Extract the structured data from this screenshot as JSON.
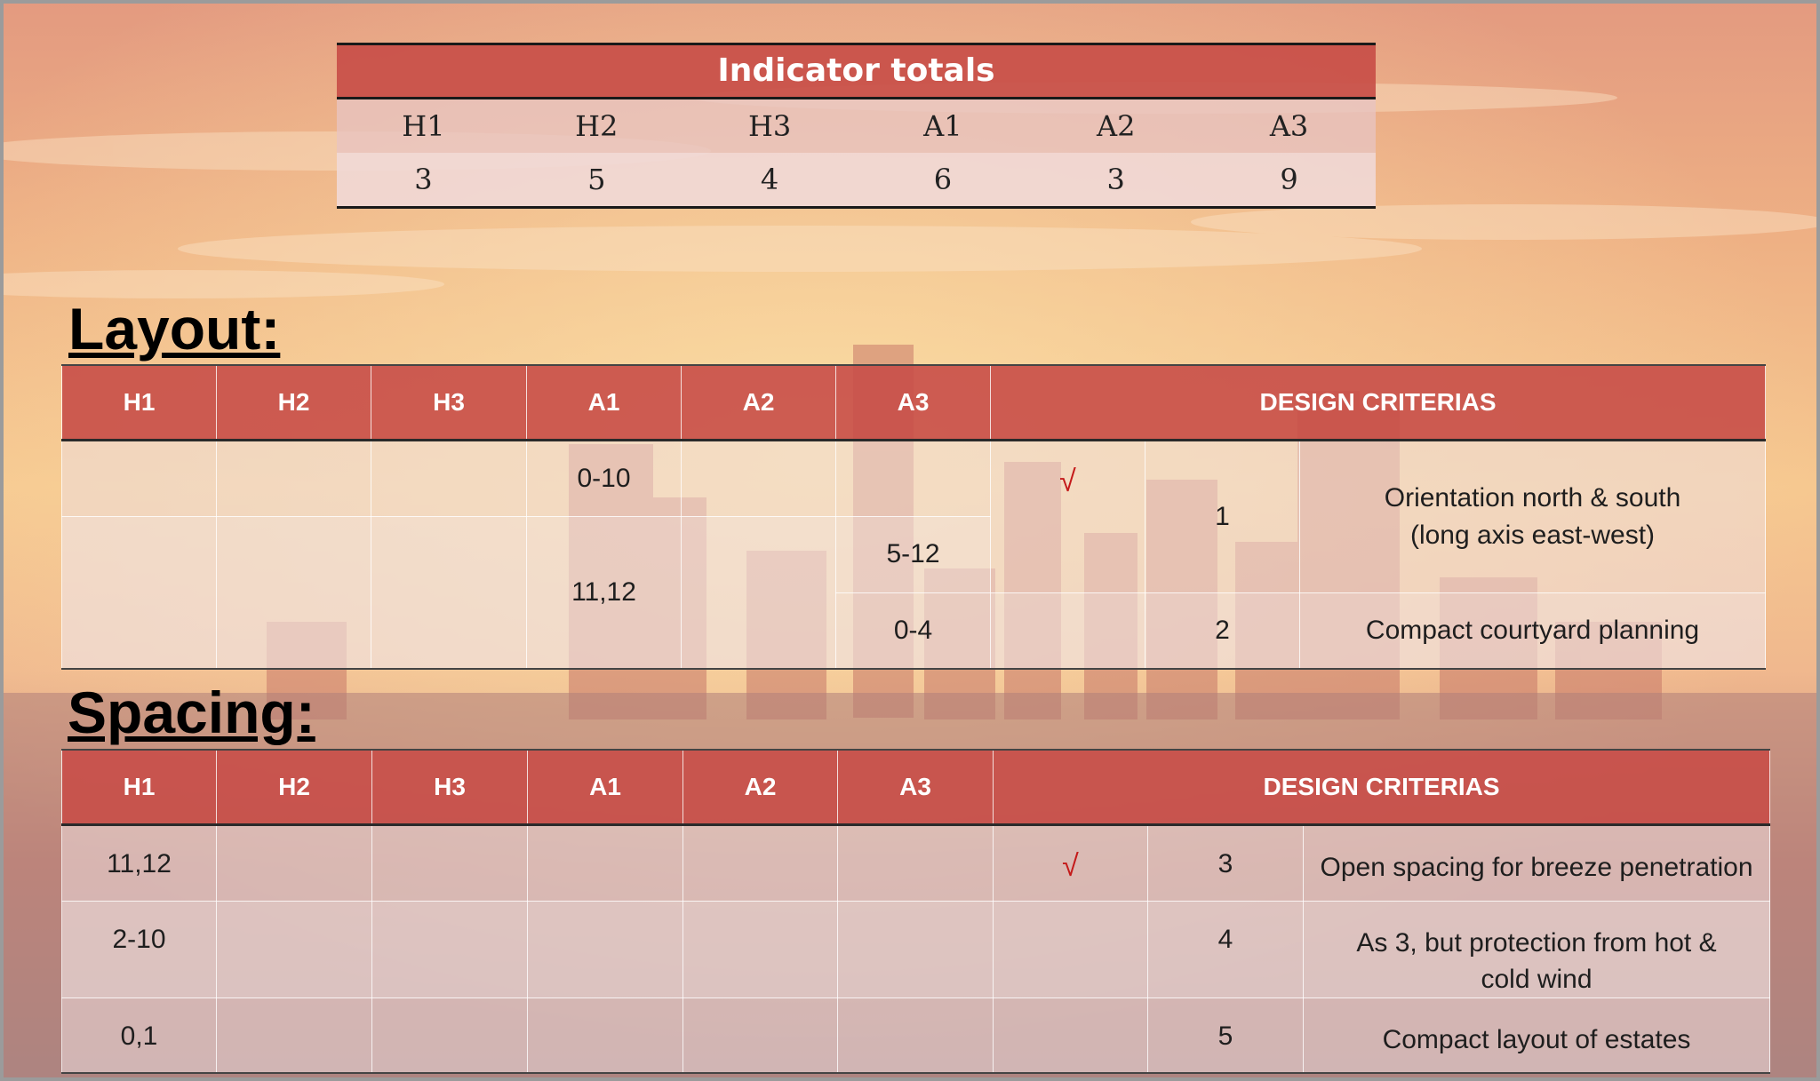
{
  "totals": {
    "title": "Indicator totals",
    "headers": [
      "H1",
      "H2",
      "H3",
      "A1",
      "A2",
      "A3"
    ],
    "values": [
      "3",
      "5",
      "4",
      "6",
      "3",
      "9"
    ]
  },
  "layout": {
    "heading": "Layout:",
    "headers": [
      "H1",
      "H2",
      "H3",
      "A1",
      "A2",
      "A3",
      "DESIGN CRITERIAS"
    ],
    "cells": {
      "a1_r1": "0-10",
      "a1_r2": "11,12",
      "a3_r2": "5-12",
      "a3_r3": "0-4"
    },
    "rows": [
      {
        "check": "√",
        "num": "1",
        "criteria": "Orientation north & south (long axis east-west)"
      },
      {
        "check": "",
        "num": "2",
        "criteria": "Compact courtyard planning"
      }
    ]
  },
  "spacing": {
    "heading": "Spacing:",
    "headers": [
      "H1",
      "H2",
      "H3",
      "A1",
      "A2",
      "A3",
      "DESIGN CRITERIAS"
    ],
    "rows": [
      {
        "h1": "11,12",
        "check": "√",
        "num": "3",
        "criteria": "Open spacing for breeze penetration"
      },
      {
        "h1": "2-10",
        "check": "",
        "num": "4",
        "criteria": "As 3, but protection from hot & cold wind"
      },
      {
        "h1": "0,1",
        "check": "",
        "num": "5",
        "criteria": "Compact layout of estates"
      }
    ]
  },
  "colors": {
    "header_red": "#c84e48",
    "check_red": "#c41a1a",
    "sky_top": "#e8a07e",
    "sky_glow": "#f6c488",
    "city": "#b96a60"
  }
}
